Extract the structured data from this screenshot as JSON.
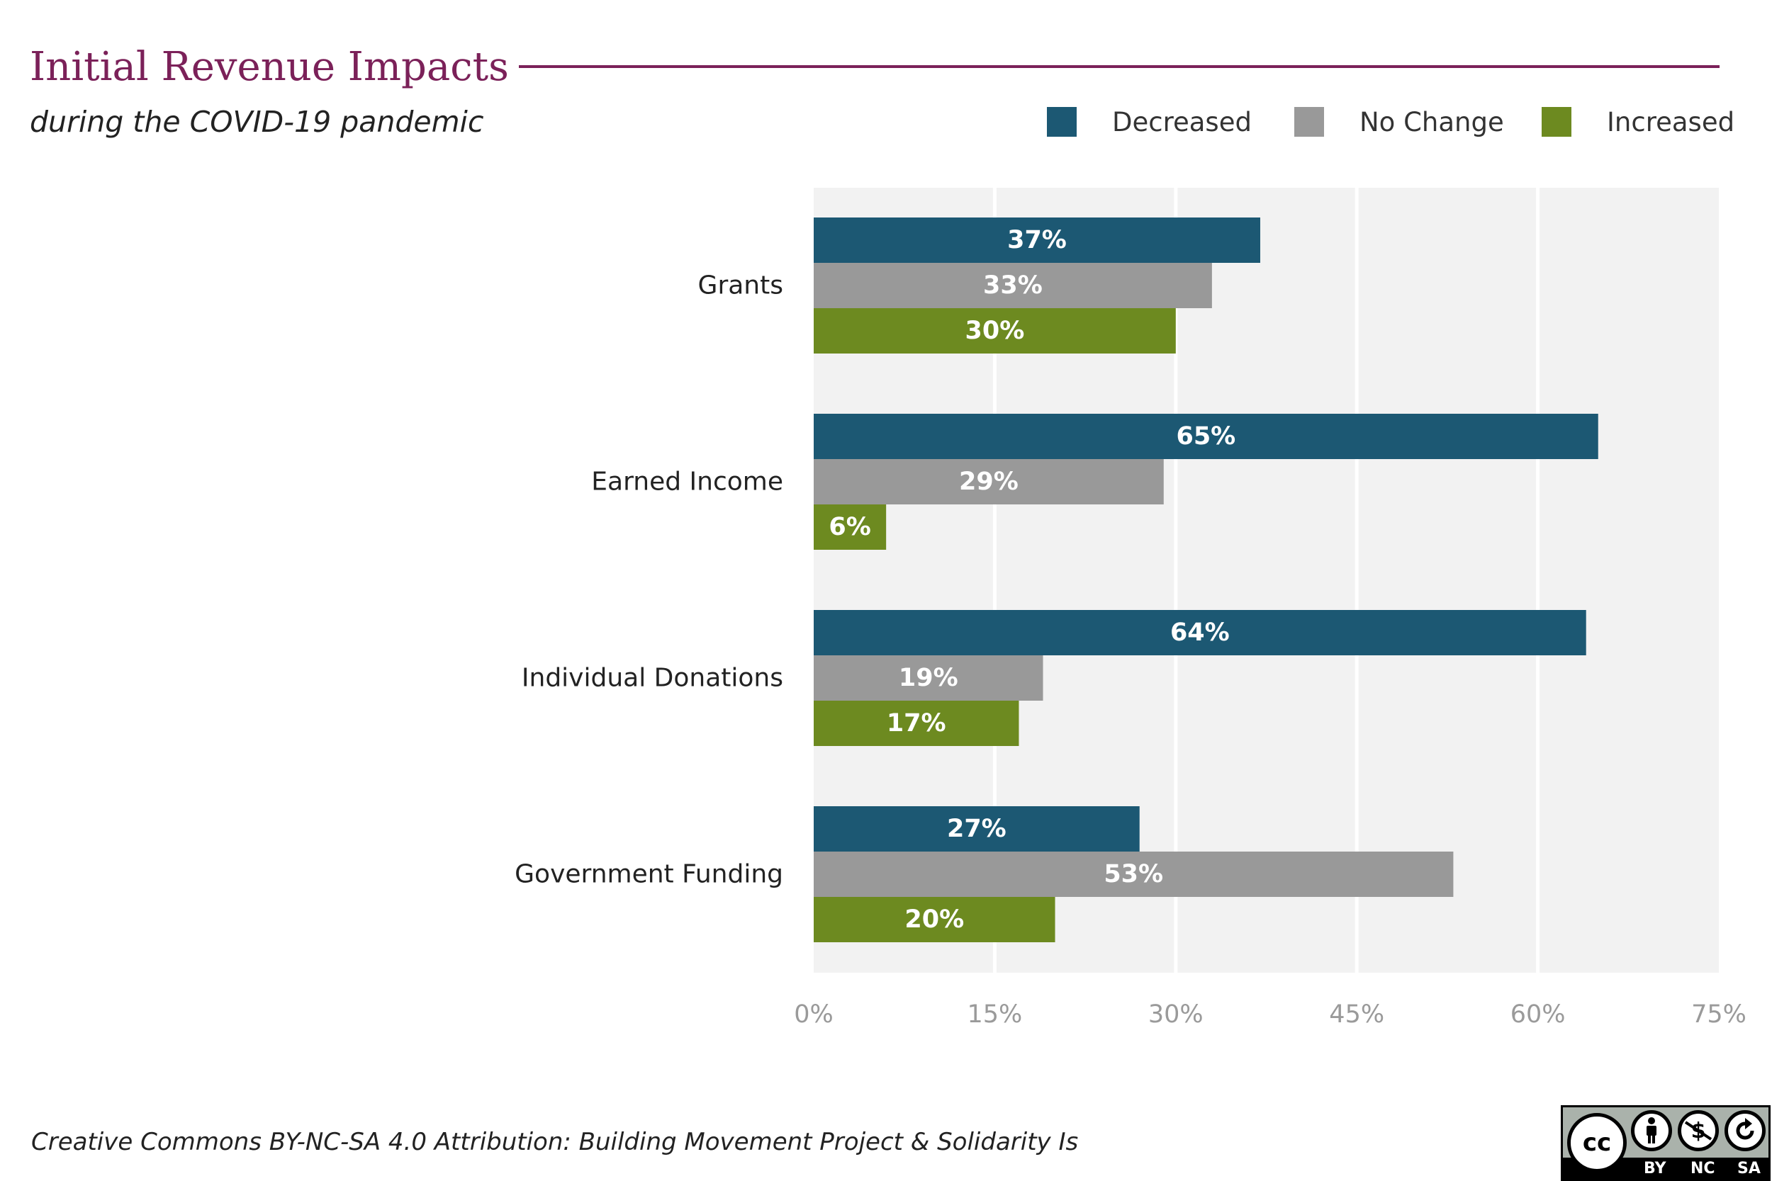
{
  "header": {
    "title": "Initial Revenue Impacts",
    "subtitle": "during the COVID-19 pandemic"
  },
  "legend": [
    {
      "label": "Decreased",
      "color": "#1c5873"
    },
    {
      "label": "No Change",
      "color": "#999999"
    },
    {
      "label": "Increased",
      "color": "#6d8a20"
    }
  ],
  "footer": {
    "attribution": "Creative Commons BY-NC-SA 4.0 Attribution: Building Movement Project & Solidarity Is"
  },
  "license_badge": {
    "cc": "cc",
    "by": "BY",
    "nc": "NC",
    "sa": "SA",
    "by_icon": "person-icon",
    "nc_icon": "no-dollar-icon",
    "sa_icon": "share-alike-icon"
  },
  "colors": {
    "title": "#7b2159",
    "panel": "#f2f2f2",
    "gridline": "#ffffff",
    "tick_text": "#9a9a9a",
    "bar_label": "#ffffff"
  },
  "chart_data": {
    "type": "bar",
    "orientation": "horizontal",
    "title": "Initial Revenue Impacts",
    "subtitle": "during the COVID-19 pandemic",
    "xlabel": "",
    "ylabel": "",
    "xlim": [
      0,
      75
    ],
    "xticks": [
      0,
      15,
      30,
      45,
      60,
      75
    ],
    "xtick_labels": [
      "0%",
      "15%",
      "30%",
      "45%",
      "60%",
      "75%"
    ],
    "grid": true,
    "legend_position": "top-right",
    "categories": [
      "Grants",
      "Earned Income",
      "Individual Donations",
      "Government Funding"
    ],
    "series": [
      {
        "name": "Decreased",
        "values": [
          37,
          65,
          64,
          27
        ],
        "labels": [
          "37%",
          "65%",
          "64%",
          "27%"
        ]
      },
      {
        "name": "No Change",
        "values": [
          33,
          29,
          19,
          53
        ],
        "labels": [
          "33%",
          "29%",
          "19%",
          "53%"
        ]
      },
      {
        "name": "Increased",
        "values": [
          30,
          6,
          17,
          20
        ],
        "labels": [
          "30%",
          "6%",
          "17%",
          "20%"
        ]
      }
    ]
  }
}
